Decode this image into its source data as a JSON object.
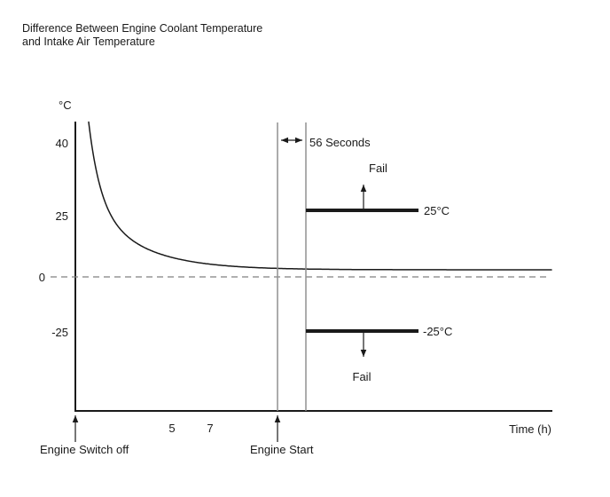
{
  "labels": {
    "title_line1": "Difference Between Engine Coolant Temperature",
    "title_line2": "and Intake Air Temperature",
    "y_unit": "°C",
    "y_tick_40": "40",
    "y_tick_25": "25",
    "y_tick_0": "0",
    "y_tick_m25": "-25",
    "x_tick_5": "5",
    "x_tick_7": "7",
    "seconds": "56 Seconds",
    "fail_upper": "Fail",
    "fail_lower": "Fail",
    "threshold_upper": "25°C",
    "threshold_lower": "-25°C",
    "time_axis": "Time (h)",
    "engine_switch_off": "Engine Switch off",
    "engine_start": "Engine Start"
  },
  "colors": {
    "ink": "#1a1a1a",
    "guide_line": "#909090",
    "zero_dash": "#808080",
    "background": "#ffffff"
  },
  "chart_data": {
    "type": "line",
    "title": "Difference Between Engine Coolant Temperature and Intake Air Temperature",
    "xlabel": "Time (h)",
    "ylabel": "°C",
    "x_ticks": [
      5,
      7
    ],
    "y_ticks": [
      40,
      25,
      0,
      -25
    ],
    "grid": false,
    "series": [
      {
        "name": "temperature-difference",
        "style": "solid-curve",
        "x": [
          0,
          0.5,
          1,
          1.5,
          2,
          3,
          4,
          5,
          6,
          7,
          8,
          9,
          10
        ],
        "values": [
          45,
          33,
          24,
          17,
          12,
          7,
          4,
          2.5,
          1.5,
          1,
          1,
          1,
          1
        ]
      }
    ],
    "reference_lines": [
      {
        "value": 0,
        "style": "dashed",
        "label": "0"
      },
      {
        "value": 25,
        "style": "thick-solid",
        "label": "25°C",
        "fail_direction": "above",
        "fail_label": "Fail"
      },
      {
        "value": -25,
        "style": "thick-solid",
        "label": "-25°C",
        "fail_direction": "below",
        "fail_label": "Fail"
      }
    ],
    "events": [
      {
        "label": "Engine Switch off",
        "position": "x-axis origin"
      },
      {
        "label": "Engine Start",
        "position": "after 7 h"
      },
      {
        "label": "56 Seconds",
        "meaning": "interval between Engine Start line and threshold-judgement line"
      }
    ]
  }
}
